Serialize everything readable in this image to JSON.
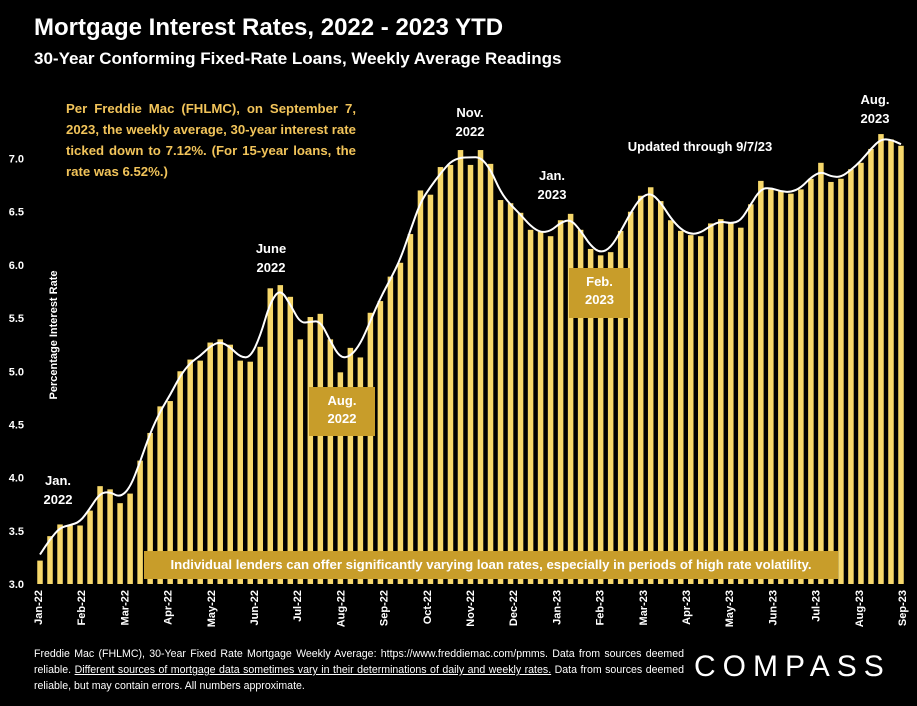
{
  "chart_data": {
    "type": "bar",
    "title": "Mortgage Interest Rates, 2022 - 2023 YTD",
    "subtitle": "30-Year Conforming Fixed-Rate Loans, Weekly Average Readings",
    "ylabel": "Percentage Interest Rate",
    "ylim": [
      3.0,
      7.4
    ],
    "yticks": [
      "3.0",
      "3.5",
      "4.0",
      "4.5",
      "5.0",
      "5.5",
      "6.0",
      "6.5",
      "7.0"
    ],
    "xticks": [
      "Jan-22",
      "Feb-22",
      "Mar-22",
      "Apr-22",
      "May-22",
      "Jun-22",
      "Jul-22",
      "Aug-22",
      "Sep-22",
      "Oct-22",
      "Nov-22",
      "Dec-22",
      "Jan-23",
      "Feb-23",
      "Mar-23",
      "Apr-23",
      "May-23",
      "Jun-23",
      "Jul-23",
      "Aug-23",
      "Sep-23"
    ],
    "series": [
      {
        "type": "bar",
        "color": "#f6d76b",
        "values": [
          3.22,
          3.45,
          3.56,
          3.55,
          3.55,
          3.69,
          3.92,
          3.89,
          3.76,
          3.85,
          4.16,
          4.42,
          4.67,
          4.72,
          5.0,
          5.11,
          5.1,
          5.27,
          5.3,
          5.25,
          5.1,
          5.09,
          5.23,
          5.78,
          5.81,
          5.7,
          5.3,
          5.51,
          5.54,
          5.3,
          4.99,
          5.22,
          5.13,
          5.55,
          5.66,
          5.89,
          6.02,
          6.29,
          6.7,
          6.66,
          6.92,
          6.94,
          7.08,
          6.94,
          7.08,
          6.95,
          6.61,
          6.58,
          6.49,
          6.33,
          6.31,
          6.27,
          6.42,
          6.48,
          6.33,
          6.15,
          6.09,
          6.12,
          6.32,
          6.5,
          6.65,
          6.73,
          6.6,
          6.42,
          6.32,
          6.28,
          6.27,
          6.39,
          6.43,
          6.39,
          6.35,
          6.57,
          6.79,
          6.71,
          6.69,
          6.67,
          6.71,
          6.81,
          6.96,
          6.78,
          6.81,
          6.9,
          6.96,
          7.09,
          7.23,
          7.18,
          7.12
        ]
      }
    ],
    "annotations": {
      "jan22": [
        "Jan.",
        "2022"
      ],
      "jun22": [
        "June",
        "2022"
      ],
      "aug22": [
        "Aug.",
        "2022"
      ],
      "nov22": [
        "Nov.",
        "2022"
      ],
      "jan23": [
        "Jan.",
        "2023"
      ],
      "feb23": [
        "Feb.",
        "2023"
      ],
      "aug23": [
        "Aug.",
        "2023"
      ],
      "updated": "Updated through 9/7/23"
    },
    "note": "Per Freddie Mac (FHLMC), on September 7, 2023, the weekly average, 30-year interest rate ticked down to 7.12%. (For 15-year loans, the rate was 6.52%.)",
    "banner": "Individual lenders can offer significantly varying loan rates, especially in periods of high rate volatility."
  },
  "footer": {
    "part1": "Freddie Mac (FHLMC), 30-Year Fixed Rate Mortgage Weekly Average: https://www.freddiemac.com/pmms. Data from sources deemed reliable. ",
    "underlined": "Different sources of mortgage data sometimes vary in their determinations of daily and weekly rates.",
    "part2": " Data from sources deemed reliable, but may contain errors. All numbers approximate."
  },
  "brand": {
    "logo": "COMPASS"
  },
  "colors": {
    "background": "#000000",
    "bar": "#f6d76b",
    "accent": "#c89d2a",
    "note": "#f2c45a",
    "line": "#ffffff"
  }
}
